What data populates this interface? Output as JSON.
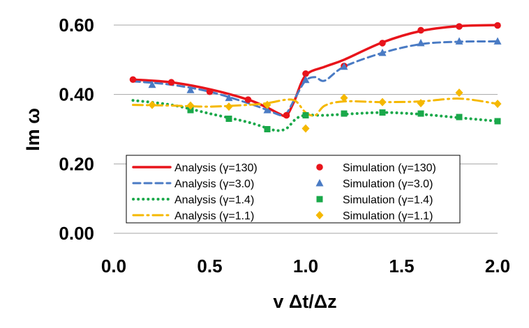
{
  "chart_data": {
    "type": "line",
    "xlabel": "v Δt/Δz",
    "ylabel": "Im ω",
    "xlim": [
      0.0,
      2.0
    ],
    "ylim": [
      0.0,
      0.6
    ],
    "x_ticks": [
      "0.0",
      "0.5",
      "1.0",
      "1.5",
      "2.0"
    ],
    "y_ticks": [
      "0.00",
      "0.20",
      "0.40",
      "0.60"
    ],
    "x_tick_values": [
      0.0,
      0.5,
      1.0,
      1.5,
      2.0
    ],
    "y_tick_values": [
      0.0,
      0.2,
      0.4,
      0.6
    ],
    "grid": "horizontal",
    "legend_position": "lower-center",
    "series": [
      {
        "name": "Analysis (γ=130)",
        "kind": "line",
        "style": "solid",
        "color": "#e8141b",
        "x": [
          0.1,
          0.3,
          0.5,
          0.7,
          0.8,
          0.86,
          0.9,
          0.94,
          1.0,
          1.1,
          1.2,
          1.4,
          1.6,
          1.8,
          2.0
        ],
        "y": [
          0.443,
          0.435,
          0.415,
          0.385,
          0.362,
          0.345,
          0.34,
          0.38,
          0.455,
          0.48,
          0.5,
          0.55,
          0.583,
          0.597,
          0.6
        ]
      },
      {
        "name": "Analysis (γ=3.0)",
        "kind": "line",
        "style": "dashed",
        "color": "#4a7bc4",
        "x": [
          0.1,
          0.3,
          0.5,
          0.7,
          0.8,
          0.87,
          0.9,
          0.95,
          1.0,
          1.05,
          1.1,
          1.2,
          1.4,
          1.6,
          1.8,
          2.0
        ],
        "y": [
          0.438,
          0.428,
          0.408,
          0.375,
          0.355,
          0.34,
          0.345,
          0.395,
          0.44,
          0.45,
          0.44,
          0.48,
          0.52,
          0.545,
          0.552,
          0.553
        ]
      },
      {
        "name": "Analysis (γ=1.4)",
        "kind": "line",
        "style": "dotted",
        "color": "#1aa84a",
        "x": [
          0.1,
          0.3,
          0.5,
          0.7,
          0.8,
          0.85,
          0.9,
          0.95,
          1.0,
          1.1,
          1.2,
          1.4,
          1.6,
          1.8,
          2.0
        ],
        "y": [
          0.383,
          0.37,
          0.345,
          0.32,
          0.303,
          0.296,
          0.302,
          0.33,
          0.34,
          0.34,
          0.343,
          0.348,
          0.343,
          0.333,
          0.323
        ]
      },
      {
        "name": "Analysis (γ=1.1)",
        "kind": "line",
        "style": "dashdot",
        "color": "#f5b800",
        "x": [
          0.1,
          0.3,
          0.5,
          0.7,
          0.8,
          0.9,
          0.95,
          1.0,
          1.05,
          1.1,
          1.2,
          1.4,
          1.6,
          1.8,
          2.0
        ],
        "y": [
          0.37,
          0.368,
          0.365,
          0.37,
          0.375,
          0.385,
          0.38,
          0.348,
          0.34,
          0.368,
          0.38,
          0.378,
          0.38,
          0.388,
          0.373
        ]
      },
      {
        "name": "Simulation (γ=130)",
        "kind": "scatter",
        "marker": "circle",
        "color": "#e8141b",
        "x": [
          0.1,
          0.3,
          0.5,
          0.7,
          0.9,
          1.0,
          1.2,
          1.4,
          1.6,
          1.8,
          2.0
        ],
        "y": [
          0.443,
          0.435,
          0.408,
          0.385,
          0.34,
          0.46,
          0.482,
          0.548,
          0.585,
          0.596,
          0.599
        ]
      },
      {
        "name": "Simulation (γ=3.0)",
        "kind": "scatter",
        "marker": "triangle",
        "color": "#4a7bc4",
        "x": [
          0.2,
          0.4,
          0.6,
          0.8,
          1.0,
          1.2,
          1.4,
          1.6,
          1.8,
          2.0
        ],
        "y": [
          0.428,
          0.413,
          0.39,
          0.355,
          0.442,
          0.48,
          0.52,
          0.548,
          0.553,
          0.553
        ]
      },
      {
        "name": "Simulation (γ=1.4)",
        "kind": "scatter",
        "marker": "square",
        "color": "#1aa84a",
        "x": [
          0.4,
          0.6,
          0.8,
          1.0,
          1.2,
          1.4,
          1.6,
          1.8,
          2.0
        ],
        "y": [
          0.355,
          0.33,
          0.3,
          0.34,
          0.345,
          0.348,
          0.345,
          0.335,
          0.323
        ]
      },
      {
        "name": "Simulation (γ=1.1)",
        "kind": "scatter",
        "marker": "diamond",
        "color": "#f5b800",
        "x": [
          0.2,
          0.4,
          0.6,
          0.8,
          1.0,
          1.2,
          1.4,
          1.6,
          1.8,
          2.0
        ],
        "y": [
          0.37,
          0.368,
          0.365,
          0.37,
          0.302,
          0.39,
          0.378,
          0.375,
          0.405,
          0.373
        ]
      }
    ]
  }
}
